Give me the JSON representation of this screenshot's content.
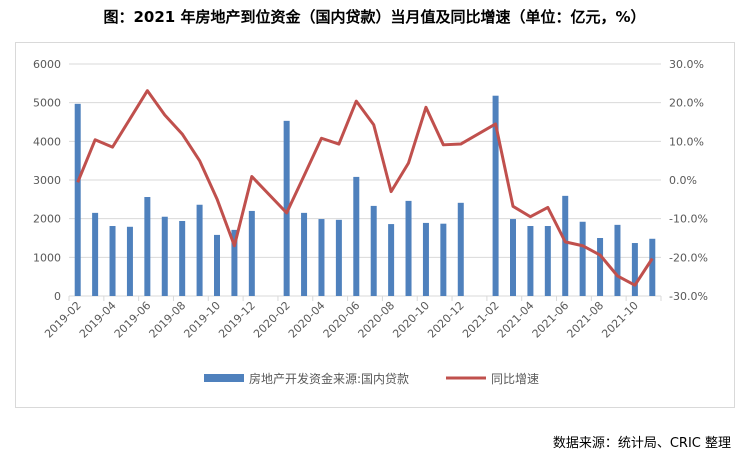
{
  "title": "图：2021 年房地产到位资金（国内贷款）当月值及同比增速（单位：亿元，%）",
  "source": "数据来源：统计局、CRIC 整理",
  "chart_data": {
    "type": "bar+line",
    "categories": [
      "2019-02",
      "2019-03",
      "2019-04",
      "2019-05",
      "2019-06",
      "2019-07",
      "2019-08",
      "2019-09",
      "2019-10",
      "2019-11",
      "2019-12",
      "2020-01",
      "2020-02",
      "2020-03",
      "2020-04",
      "2020-05",
      "2020-06",
      "2020-07",
      "2020-08",
      "2020-09",
      "2020-10",
      "2020-11",
      "2020-12",
      "2021-01",
      "2021-02",
      "2021-03",
      "2021-04",
      "2021-05",
      "2021-06",
      "2021-07",
      "2021-08",
      "2021-09",
      "2021-10",
      "2021-11"
    ],
    "x_tick_labels": [
      "2019-02",
      "2019-04",
      "2019-06",
      "2019-08",
      "2019-10",
      "2019-12",
      "2020-02",
      "2020-04",
      "2020-06",
      "2020-08",
      "2020-10",
      "2020-12",
      "2021-02",
      "2021-04",
      "2021-06",
      "2021-08",
      "2021-10"
    ],
    "series": [
      {
        "name": "房地产开发资金来源:国内贷款",
        "type": "bar",
        "axis": "left",
        "color": "#4f81bd",
        "values": [
          4970,
          2150,
          1810,
          1790,
          2560,
          2050,
          1940,
          2360,
          1580,
          1710,
          2200,
          null,
          4530,
          2150,
          1990,
          1970,
          3080,
          2330,
          1860,
          2460,
          1890,
          1870,
          2410,
          null,
          5180,
          1990,
          1810,
          1810,
          2590,
          1920,
          1500,
          1840,
          1370,
          1480
        ]
      },
      {
        "name": "同比增速",
        "type": "line",
        "axis": "right",
        "color": "#c0504d",
        "values": [
          -0.6,
          10.4,
          8.5,
          15.8,
          23.1,
          16.8,
          11.9,
          5.0,
          -4.9,
          -17.0,
          0.9,
          null,
          -8.5,
          1.1,
          10.8,
          9.3,
          20.4,
          14.3,
          -3.0,
          4.4,
          18.8,
          9.1,
          9.3,
          null,
          14.5,
          -6.8,
          -9.5,
          -7.1,
          -16.0,
          -17.0,
          -19.4,
          -24.8,
          -27.2,
          -20.3
        ]
      }
    ],
    "y_left": {
      "range": [
        0,
        6000
      ],
      "ticks": [
        "0",
        "1000",
        "2000",
        "3000",
        "4000",
        "5000",
        "6000"
      ]
    },
    "y_right": {
      "range": [
        -30,
        30
      ],
      "ticks": [
        "-30.0%",
        "-20.0%",
        "-10.0%",
        "0.0%",
        "10.0%",
        "20.0%",
        "30.0%"
      ]
    },
    "grid": true,
    "legend": "bottom"
  }
}
